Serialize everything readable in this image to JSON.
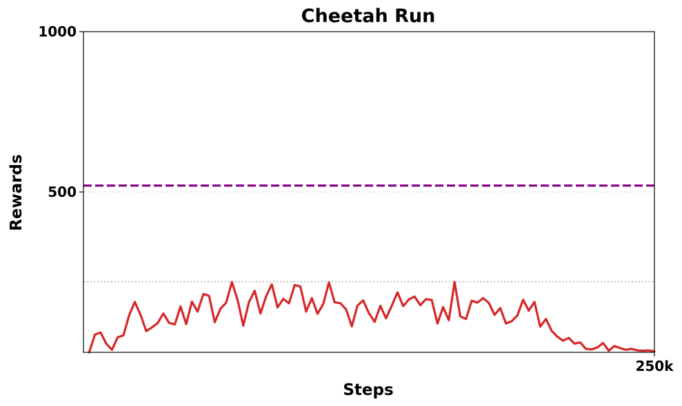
{
  "chart_data": {
    "type": "line",
    "title": "Cheetah Run",
    "xlabel": "Steps",
    "ylabel": "Rewards",
    "xlim": [
      0,
      250000
    ],
    "ylim": [
      0,
      1000
    ],
    "x_ticks": [
      {
        "value": 250000,
        "label": "250k"
      }
    ],
    "y_ticks": [
      {
        "value": 500,
        "label": "500"
      },
      {
        "value": 1000,
        "label": "1000"
      }
    ],
    "x_start": 2500,
    "x_step": 2500,
    "series": [
      {
        "type": "line",
        "color": "#d62728",
        "values": [
          0,
          55,
          62,
          27,
          8,
          47,
          53,
          115,
          157,
          117,
          66,
          78,
          91,
          121,
          92,
          87,
          143,
          88,
          158,
          127,
          182,
          176,
          94,
          136,
          155,
          219,
          163,
          83,
          157,
          192,
          121,
          175,
          212,
          140,
          167,
          153,
          210,
          205,
          127,
          169,
          120,
          151,
          218,
          156,
          153,
          134,
          81,
          146,
          162,
          122,
          95,
          145,
          106,
          145,
          187,
          144,
          165,
          174,
          147,
          166,
          163,
          90,
          141,
          100,
          219,
          112,
          104,
          161,
          155,
          169,
          154,
          117,
          138,
          90,
          97,
          115,
          164,
          130,
          157,
          80,
          104,
          67,
          49,
          36,
          45,
          27,
          31,
          11,
          9,
          15,
          29,
          5,
          20,
          13,
          8,
          11,
          6,
          5,
          6,
          3
        ]
      }
    ],
    "reference_lines": [
      {
        "y": 520,
        "style": "dashed",
        "color": "#800080"
      },
      {
        "y": 220,
        "style": "dotted",
        "color": "#b3b3b3"
      }
    ],
    "grid": {
      "y": true,
      "color": "#dddddd",
      "style": "dashed"
    }
  }
}
